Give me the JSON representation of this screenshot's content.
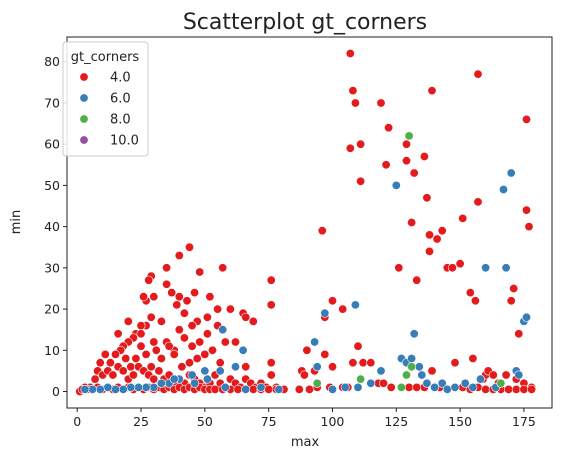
{
  "chart_data": {
    "type": "scatter",
    "title": "Scatterplot gt_corners",
    "xlabel": "max",
    "ylabel": "min",
    "xlim": [
      -4,
      186
    ],
    "ylim": [
      -4,
      86
    ],
    "x_ticks": [
      0,
      25,
      50,
      75,
      100,
      125,
      150,
      175
    ],
    "y_ticks": [
      0,
      10,
      20,
      30,
      40,
      50,
      60,
      70,
      80
    ],
    "grid": false,
    "legend": {
      "title": "gt_corners",
      "placement": "top-left"
    },
    "series": [
      {
        "name": "4.0",
        "color": "#e41a1c",
        "points": [
          [
            44,
            35
          ],
          [
            40,
            33
          ],
          [
            35,
            30
          ],
          [
            29,
            28
          ],
          [
            28,
            27
          ],
          [
            35,
            26
          ],
          [
            30,
            23
          ],
          [
            27,
            22
          ],
          [
            26,
            23
          ],
          [
            37,
            24
          ],
          [
            40,
            23
          ],
          [
            46,
            24
          ],
          [
            43,
            22
          ],
          [
            39,
            21
          ],
          [
            42,
            19
          ],
          [
            48,
            29
          ],
          [
            52,
            23
          ],
          [
            57,
            30
          ],
          [
            55,
            20
          ],
          [
            60,
            20
          ],
          [
            65,
            19
          ],
          [
            66,
            18
          ],
          [
            69,
            17
          ],
          [
            51,
            18
          ],
          [
            47,
            17
          ],
          [
            45,
            16
          ],
          [
            40,
            15
          ],
          [
            33,
            17
          ],
          [
            29,
            18
          ],
          [
            27,
            16
          ],
          [
            25,
            16
          ],
          [
            23,
            14
          ],
          [
            22,
            13
          ],
          [
            20,
            12
          ],
          [
            18,
            11
          ],
          [
            16,
            14
          ],
          [
            20,
            17
          ],
          [
            25,
            14
          ],
          [
            30,
            12
          ],
          [
            35,
            12
          ],
          [
            38,
            10
          ],
          [
            42,
            13
          ],
          [
            45,
            11
          ],
          [
            48,
            12
          ],
          [
            51,
            14
          ],
          [
            55,
            16
          ],
          [
            58,
            12
          ],
          [
            62,
            12
          ],
          [
            56,
            7
          ],
          [
            53,
            10
          ],
          [
            50,
            9
          ],
          [
            47,
            8
          ],
          [
            44,
            7
          ],
          [
            41,
            6
          ],
          [
            38,
            9
          ],
          [
            36,
            11
          ],
          [
            33,
            8
          ],
          [
            31,
            10
          ],
          [
            29,
            6
          ],
          [
            27,
            9
          ],
          [
            25,
            11
          ],
          [
            23,
            8
          ],
          [
            21,
            6
          ],
          [
            19,
            8
          ],
          [
            17,
            10
          ],
          [
            15,
            9
          ],
          [
            13,
            7
          ],
          [
            11,
            9
          ],
          [
            9,
            7
          ],
          [
            8,
            5
          ],
          [
            7,
            3
          ],
          [
            10,
            4
          ],
          [
            12,
            5
          ],
          [
            14,
            4
          ],
          [
            16,
            6
          ],
          [
            18,
            5
          ],
          [
            20,
            3
          ],
          [
            22,
            4
          ],
          [
            24,
            6
          ],
          [
            26,
            5
          ],
          [
            28,
            4
          ],
          [
            30,
            3
          ],
          [
            32,
            5
          ],
          [
            34,
            3
          ],
          [
            36,
            4
          ],
          [
            38,
            2
          ],
          [
            40,
            3
          ],
          [
            42,
            2
          ],
          [
            44,
            4
          ],
          [
            46,
            3
          ],
          [
            48,
            2
          ],
          [
            50,
            1
          ],
          [
            52,
            2
          ],
          [
            54,
            4
          ],
          [
            56,
            2
          ],
          [
            58,
            1
          ],
          [
            60,
            3
          ],
          [
            62,
            2
          ],
          [
            64,
            1
          ],
          [
            66,
            3
          ],
          [
            68,
            2
          ],
          [
            70,
            1
          ],
          [
            72,
            2
          ],
          [
            74,
            1
          ],
          [
            76,
            4
          ],
          [
            78,
            1
          ],
          [
            5,
            1
          ],
          [
            3,
            1
          ],
          [
            1,
            0
          ],
          [
            2,
            0.5
          ],
          [
            4,
            0.5
          ],
          [
            6,
            0.5
          ],
          [
            8,
            1
          ],
          [
            10,
            0.5
          ],
          [
            12,
            1
          ],
          [
            14,
            0.5
          ],
          [
            16,
            1
          ],
          [
            18,
            0.5
          ],
          [
            20,
            1
          ],
          [
            22,
            0.5
          ],
          [
            24,
            1
          ],
          [
            26,
            0.5
          ],
          [
            28,
            1
          ],
          [
            30,
            0.5
          ],
          [
            32,
            1
          ],
          [
            34,
            0.5
          ],
          [
            36,
            1
          ],
          [
            38,
            0.5
          ],
          [
            40,
            1
          ],
          [
            42,
            0.5
          ],
          [
            44,
            1
          ],
          [
            46,
            0.5
          ],
          [
            48,
            1
          ],
          [
            50,
            0.5
          ],
          [
            52,
            0.5
          ],
          [
            54,
            0.5
          ],
          [
            57,
            0.5
          ],
          [
            60,
            0.5
          ],
          [
            63,
            0.5
          ],
          [
            66,
            0.5
          ],
          [
            69,
            0.5
          ],
          [
            72,
            0.5
          ],
          [
            75,
            0.5
          ],
          [
            78,
            0.5
          ],
          [
            81,
            0.5
          ],
          [
            76,
            27
          ],
          [
            76,
            21
          ],
          [
            66,
            6
          ],
          [
            76,
            7
          ],
          [
            88,
            5
          ],
          [
            89,
            4
          ],
          [
            90,
            10
          ],
          [
            93,
            5
          ],
          [
            96,
            39
          ],
          [
            97,
            18
          ],
          [
            100,
            22
          ],
          [
            104,
            20
          ],
          [
            100,
            6
          ],
          [
            107,
            59
          ],
          [
            108,
            73
          ],
          [
            109,
            70
          ],
          [
            111,
            51
          ],
          [
            111,
            60
          ],
          [
            107,
            82
          ],
          [
            119,
            70
          ],
          [
            121,
            55
          ],
          [
            122,
            64
          ],
          [
            126,
            30
          ],
          [
            129,
            56
          ],
          [
            129,
            60
          ],
          [
            131,
            41
          ],
          [
            132,
            53
          ],
          [
            133,
            27
          ],
          [
            136,
            57
          ],
          [
            137,
            47
          ],
          [
            138,
            38
          ],
          [
            138,
            34
          ],
          [
            139,
            73
          ],
          [
            141,
            37
          ],
          [
            143,
            39
          ],
          [
            145,
            30
          ],
          [
            147,
            30
          ],
          [
            150,
            31
          ],
          [
            151,
            42
          ],
          [
            154,
            24
          ],
          [
            155,
            8
          ],
          [
            156,
            22
          ],
          [
            157,
            46
          ],
          [
            157,
            77
          ],
          [
            159,
            3
          ],
          [
            160,
            4
          ],
          [
            161,
            5
          ],
          [
            163,
            4
          ],
          [
            165,
            2
          ],
          [
            168,
            4
          ],
          [
            170,
            22
          ],
          [
            171,
            25
          ],
          [
            172,
            3
          ],
          [
            173,
            14
          ],
          [
            175,
            2
          ],
          [
            176,
            66
          ],
          [
            176,
            44
          ],
          [
            177,
            40
          ],
          [
            178,
            1
          ],
          [
            97,
            9
          ],
          [
            99,
            1
          ],
          [
            104,
            1
          ],
          [
            106,
            1
          ],
          [
            108,
            7
          ],
          [
            110,
            11
          ],
          [
            112,
            7
          ],
          [
            115,
            7
          ],
          [
            118,
            2
          ],
          [
            120,
            2
          ],
          [
            123,
            1
          ],
          [
            127,
            1
          ],
          [
            130,
            1
          ],
          [
            133,
            1
          ],
          [
            136,
            1
          ],
          [
            139,
            5
          ],
          [
            142,
            1
          ],
          [
            145,
            0.5
          ],
          [
            148,
            1
          ],
          [
            151,
            1
          ],
          [
            154,
            0.5
          ],
          [
            157,
            1
          ],
          [
            160,
            0.5
          ],
          [
            163,
            0.5
          ],
          [
            166,
            0.5
          ],
          [
            169,
            0.5
          ],
          [
            172,
            0.5
          ],
          [
            175,
            0.5
          ],
          [
            178,
            0.5
          ],
          [
            148,
            7
          ],
          [
            91,
            0.5
          ],
          [
            94,
            1
          ],
          [
            87,
            0.5
          ]
        ]
      },
      {
        "name": "6.0",
        "color": "#377eb8",
        "points": [
          [
            57,
            15
          ],
          [
            62,
            6
          ],
          [
            65,
            10
          ],
          [
            56,
            5
          ],
          [
            51,
            3
          ],
          [
            46,
            2
          ],
          [
            40,
            3
          ],
          [
            36,
            2
          ],
          [
            33,
            2
          ],
          [
            30,
            1
          ],
          [
            27,
            1
          ],
          [
            24,
            1
          ],
          [
            21,
            1
          ],
          [
            18,
            0.5
          ],
          [
            15,
            0.5
          ],
          [
            12,
            1
          ],
          [
            9,
            0.5
          ],
          [
            6,
            0.5
          ],
          [
            3,
            0.5
          ],
          [
            38,
            3
          ],
          [
            45,
            4
          ],
          [
            50,
            5
          ],
          [
            58,
            1
          ],
          [
            66,
            0.5
          ],
          [
            72,
            1
          ],
          [
            79,
            0.5
          ],
          [
            93,
            12
          ],
          [
            94,
            6
          ],
          [
            97,
            19
          ],
          [
            109,
            21
          ],
          [
            119,
            5
          ],
          [
            125,
            50
          ],
          [
            127,
            8
          ],
          [
            129,
            7
          ],
          [
            131,
            8
          ],
          [
            132,
            14
          ],
          [
            134,
            6
          ],
          [
            135,
            4
          ],
          [
            137,
            2
          ],
          [
            140,
            1
          ],
          [
            143,
            2
          ],
          [
            145,
            0.5
          ],
          [
            148,
            1
          ],
          [
            152,
            2
          ],
          [
            155,
            1
          ],
          [
            158,
            3
          ],
          [
            160,
            30
          ],
          [
            164,
            1
          ],
          [
            167,
            49
          ],
          [
            168,
            30
          ],
          [
            170,
            53
          ],
          [
            172,
            5
          ],
          [
            173,
            4
          ],
          [
            175,
            17
          ],
          [
            176,
            18
          ],
          [
            100,
            0.5
          ],
          [
            105,
            1
          ],
          [
            110,
            1
          ],
          [
            115,
            2
          ]
        ]
      },
      {
        "name": "8.0",
        "color": "#4daf4a",
        "points": [
          [
            94,
            2
          ],
          [
            111,
            3
          ],
          [
            129,
            4
          ],
          [
            130,
            62
          ],
          [
            131,
            6
          ],
          [
            166,
            2
          ],
          [
            127,
            1
          ]
        ]
      },
      {
        "name": "10.0",
        "color": "#984ea3",
        "points": []
      }
    ]
  }
}
